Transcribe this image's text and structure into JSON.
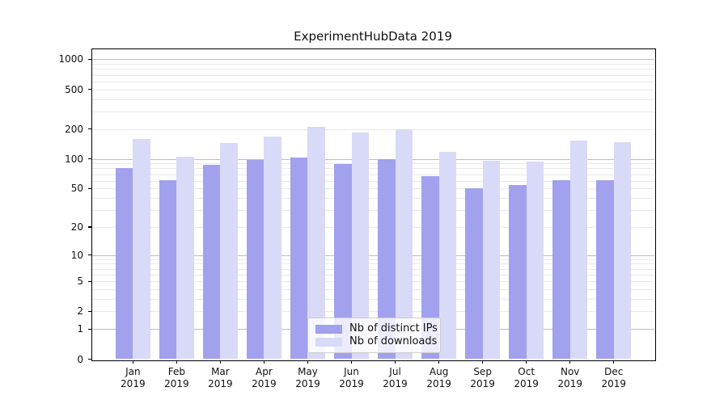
{
  "chart_data": {
    "type": "bar",
    "title": "ExperimentHubData 2019",
    "categories": [
      "Jan 2019",
      "Feb 2019",
      "Mar 2019",
      "Apr 2019",
      "May 2019",
      "Jun 2019",
      "Jul 2019",
      "Aug 2019",
      "Sep 2019",
      "Oct 2019",
      "Nov 2019",
      "Dec 2019"
    ],
    "series": [
      {
        "name": "Nb of distinct IPs",
        "color": "#a1a1ed",
        "values": [
          80,
          61,
          87,
          98,
          104,
          89,
          100,
          67,
          50,
          54,
          61,
          61
        ]
      },
      {
        "name": "Nb of downloads",
        "color": "#d9d9f8",
        "values": [
          160,
          106,
          144,
          167,
          210,
          184,
          200,
          118,
          95,
          93,
          154,
          147
        ]
      }
    ],
    "xlabel": "",
    "ylabel": "",
    "yscale": "log1p",
    "ylim": [
      0,
      1284
    ],
    "yticks": [
      1000,
      500,
      200,
      100,
      50,
      20,
      10,
      5,
      2,
      1,
      0
    ],
    "grid": "horizontal, major gray at powers of 10, faint minors between",
    "legend_position": "inside lower-center",
    "colors": {
      "major_grid": "#bdbdbd",
      "minor_grid": "#e9e9e9",
      "spine": "#000000",
      "background": "#ffffff"
    }
  }
}
